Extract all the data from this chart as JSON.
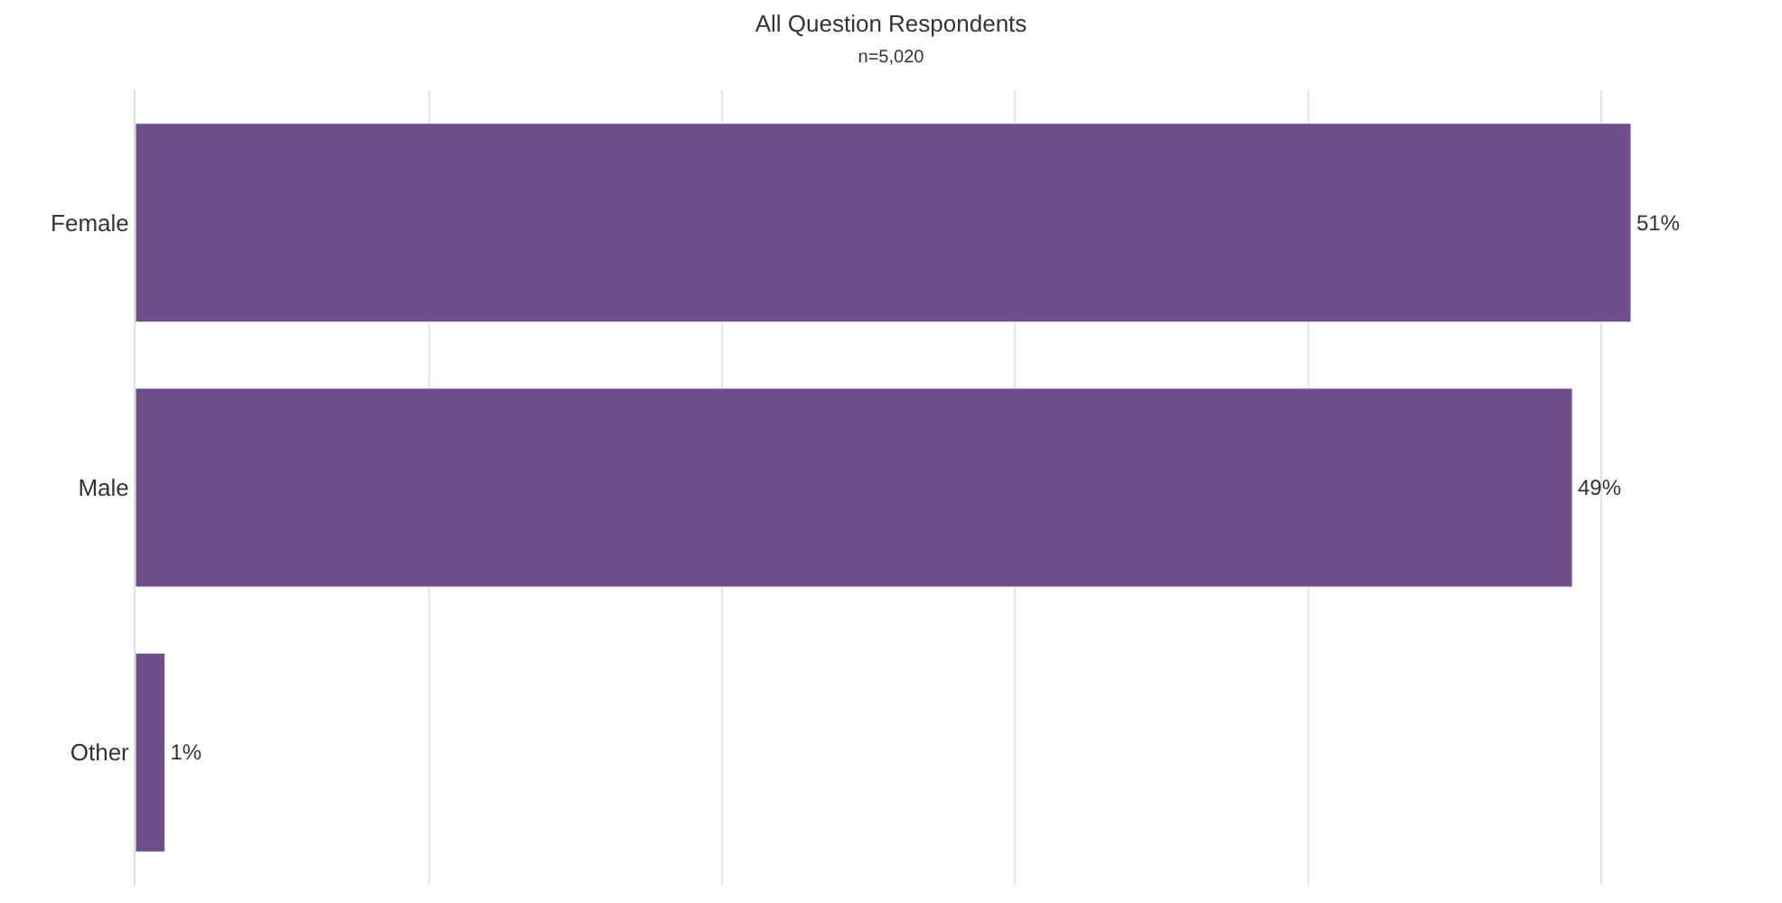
{
  "chart_data": {
    "type": "bar",
    "orientation": "horizontal",
    "title": "All Question Respondents",
    "subtitle": "n=5,020",
    "categories": [
      "Female",
      "Male",
      "Other"
    ],
    "values": [
      51,
      49,
      1
    ],
    "value_labels": [
      "51%",
      "49%",
      "1%"
    ],
    "color": "#704e8a",
    "grid": "x",
    "legend": false
  }
}
